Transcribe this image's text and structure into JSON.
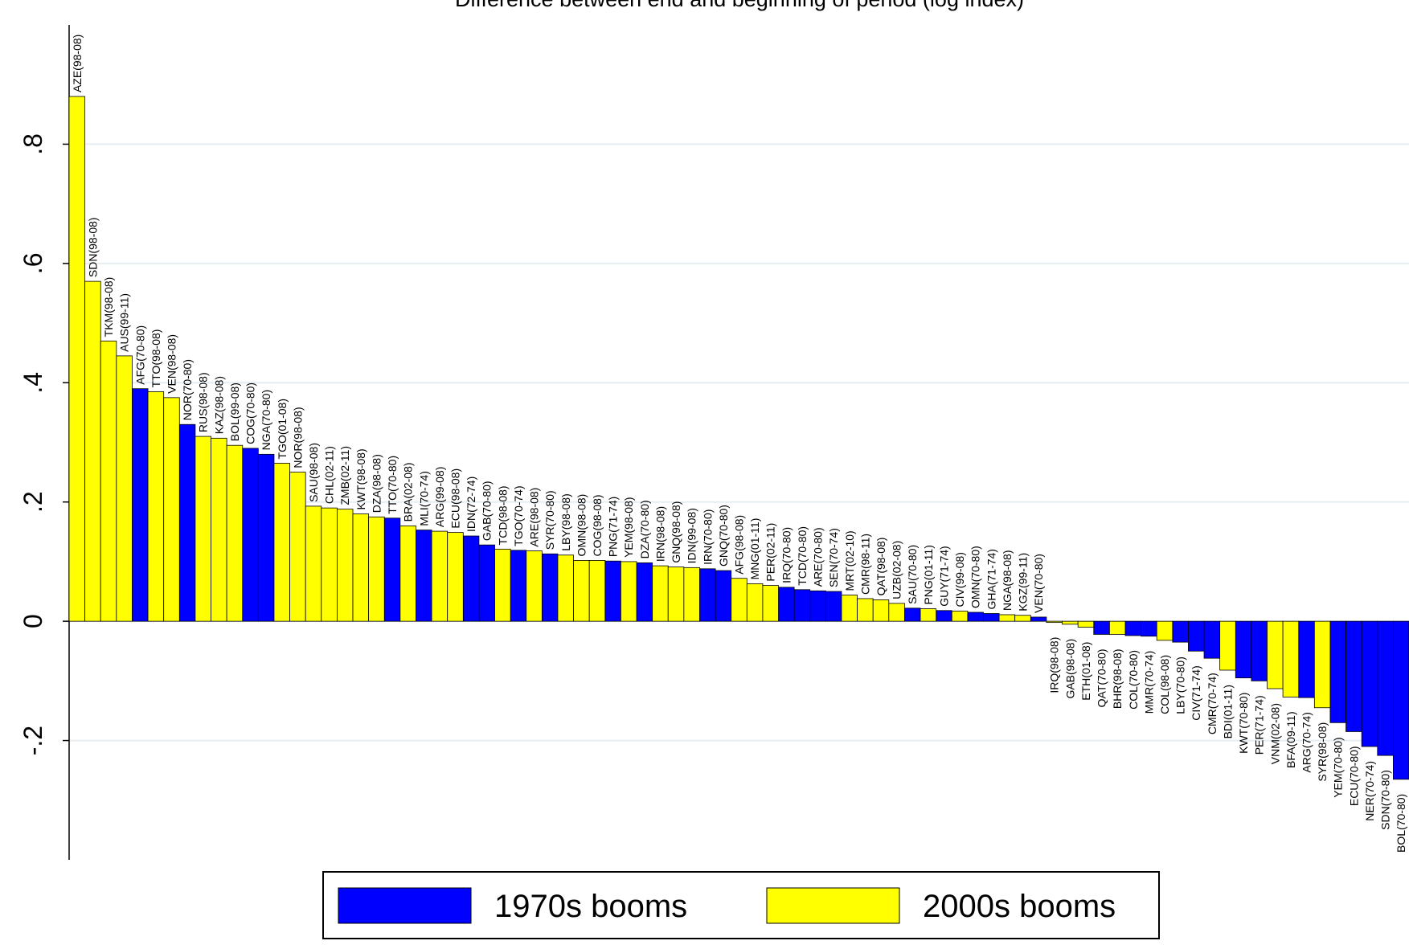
{
  "chart_data": {
    "type": "bar",
    "title": "Difference between end and beginning of period (log index)",
    "categories": [
      "AZE(98-08)",
      "SDN(98-08)",
      "TKM(98-08)",
      "AUS(99-11)",
      "AFG(70-80)",
      "TTO(98-08)",
      "VEN(98-08)",
      "NOR(70-80)",
      "RUS(98-08)",
      "KAZ(98-08)",
      "BOL(99-08)",
      "COG(70-80)",
      "NGA(70-80)",
      "TGO(01-08)",
      "NOR(98-08)",
      "SAU(98-08)",
      "CHL(02-11)",
      "ZMB(02-11)",
      "KWT(98-08)",
      "DZA(98-08)",
      "TTO(70-80)",
      "BRA(02-08)",
      "MLI(70-74)",
      "ARG(99-08)",
      "ECU(98-08)",
      "IDN(72-74)",
      "GAB(70-80)",
      "TCD(98-08)",
      "TGO(70-74)",
      "ARE(98-08)",
      "SYR(70-80)",
      "LBY(98-08)",
      "OMN(98-08)",
      "COG(98-08)",
      "PNG(71-74)",
      "YEM(98-08)",
      "DZA(70-80)",
      "IRN(98-08)",
      "GNQ(98-08)",
      "IDN(99-08)",
      "IRN(70-80)",
      "GNQ(70-80)",
      "AFG(98-08)",
      "MNG(01-11)",
      "PER(02-11)",
      "IRQ(70-80)",
      "TCD(70-80)",
      "ARE(70-80)",
      "SEN(70-74)",
      "MRT(02-10)",
      "CMR(98-11)",
      "QAT(98-08)",
      "UZB(02-08)",
      "SAU(70-80)",
      "PNG(01-11)",
      "GUY(71-74)",
      "CIV(99-08)",
      "OMN(70-80)",
      "GHA(71-74)",
      "NGA(98-08)",
      "KGZ(99-11)",
      "VEN(70-80)",
      "IRQ(98-08)",
      "GAB(98-08)",
      "ETH(01-08)",
      "QAT(70-80)",
      "BHR(98-08)",
      "COL(70-80)",
      "MMR(70-74)",
      "COL(98-08)",
      "LBY(70-80)",
      "CIV(71-74)",
      "CMR(70-74)",
      "BDI(01-11)",
      "KWT(70-80)",
      "PER(71-74)",
      "VNM(02-08)",
      "BFA(09-11)",
      "ARG(70-74)",
      "SYR(98-08)",
      "YEM(70-80)",
      "ECU(70-80)",
      "NER(70-74)",
      "SDN(70-80)",
      "BOL(70-80)"
    ],
    "series": [
      {
        "name": "1970s booms",
        "color": "#0000ff",
        "values": [
          null,
          null,
          null,
          null,
          0.39,
          null,
          null,
          0.33,
          null,
          null,
          null,
          0.29,
          0.28,
          null,
          null,
          null,
          null,
          null,
          null,
          null,
          0.173,
          null,
          0.153,
          null,
          null,
          0.143,
          0.128,
          null,
          0.119,
          null,
          0.113,
          null,
          null,
          null,
          0.101,
          null,
          0.098,
          null,
          null,
          null,
          0.088,
          0.085,
          null,
          null,
          null,
          0.057,
          0.053,
          0.051,
          0.05,
          null,
          null,
          null,
          null,
          0.022,
          null,
          0.018,
          null,
          0.015,
          0.013,
          null,
          null,
          0.007,
          null,
          null,
          null,
          -0.022,
          null,
          -0.024,
          -0.025,
          null,
          -0.035,
          -0.05,
          -0.062,
          null,
          -0.095,
          -0.1,
          null,
          null,
          -0.128,
          null,
          -0.17,
          -0.185,
          -0.21,
          -0.225,
          -0.265
        ]
      },
      {
        "name": "2000s booms",
        "color": "#ffff00",
        "values": [
          0.88,
          0.57,
          0.47,
          0.445,
          null,
          0.385,
          0.375,
          null,
          0.31,
          0.307,
          0.295,
          null,
          null,
          0.265,
          0.25,
          0.193,
          0.19,
          0.188,
          0.18,
          0.175,
          null,
          0.16,
          null,
          0.151,
          0.149,
          null,
          null,
          0.121,
          null,
          0.118,
          null,
          0.111,
          0.102,
          0.102,
          null,
          0.1,
          null,
          0.093,
          0.091,
          0.09,
          null,
          null,
          0.072,
          0.063,
          0.06,
          null,
          null,
          null,
          null,
          0.044,
          0.038,
          0.036,
          0.03,
          null,
          0.021,
          null,
          0.017,
          null,
          null,
          0.011,
          0.01,
          null,
          -0.002,
          -0.005,
          -0.01,
          null,
          -0.022,
          null,
          null,
          -0.032,
          null,
          null,
          null,
          -0.082,
          null,
          null,
          -0.113,
          -0.127,
          null,
          -0.145,
          null,
          null,
          null,
          null,
          null
        ]
      }
    ],
    "ylim": [
      -0.4,
      1.0
    ],
    "yticks": [
      {
        "value": -0.2,
        "label": "-.2"
      },
      0,
      {
        "value": 0.2,
        "label": ".2"
      },
      {
        "value": 0.4,
        "label": ".4"
      },
      {
        "value": 0.6,
        "label": ".6"
      },
      {
        "value": 0.8,
        "label": ".8"
      }
    ],
    "grid": true
  }
}
